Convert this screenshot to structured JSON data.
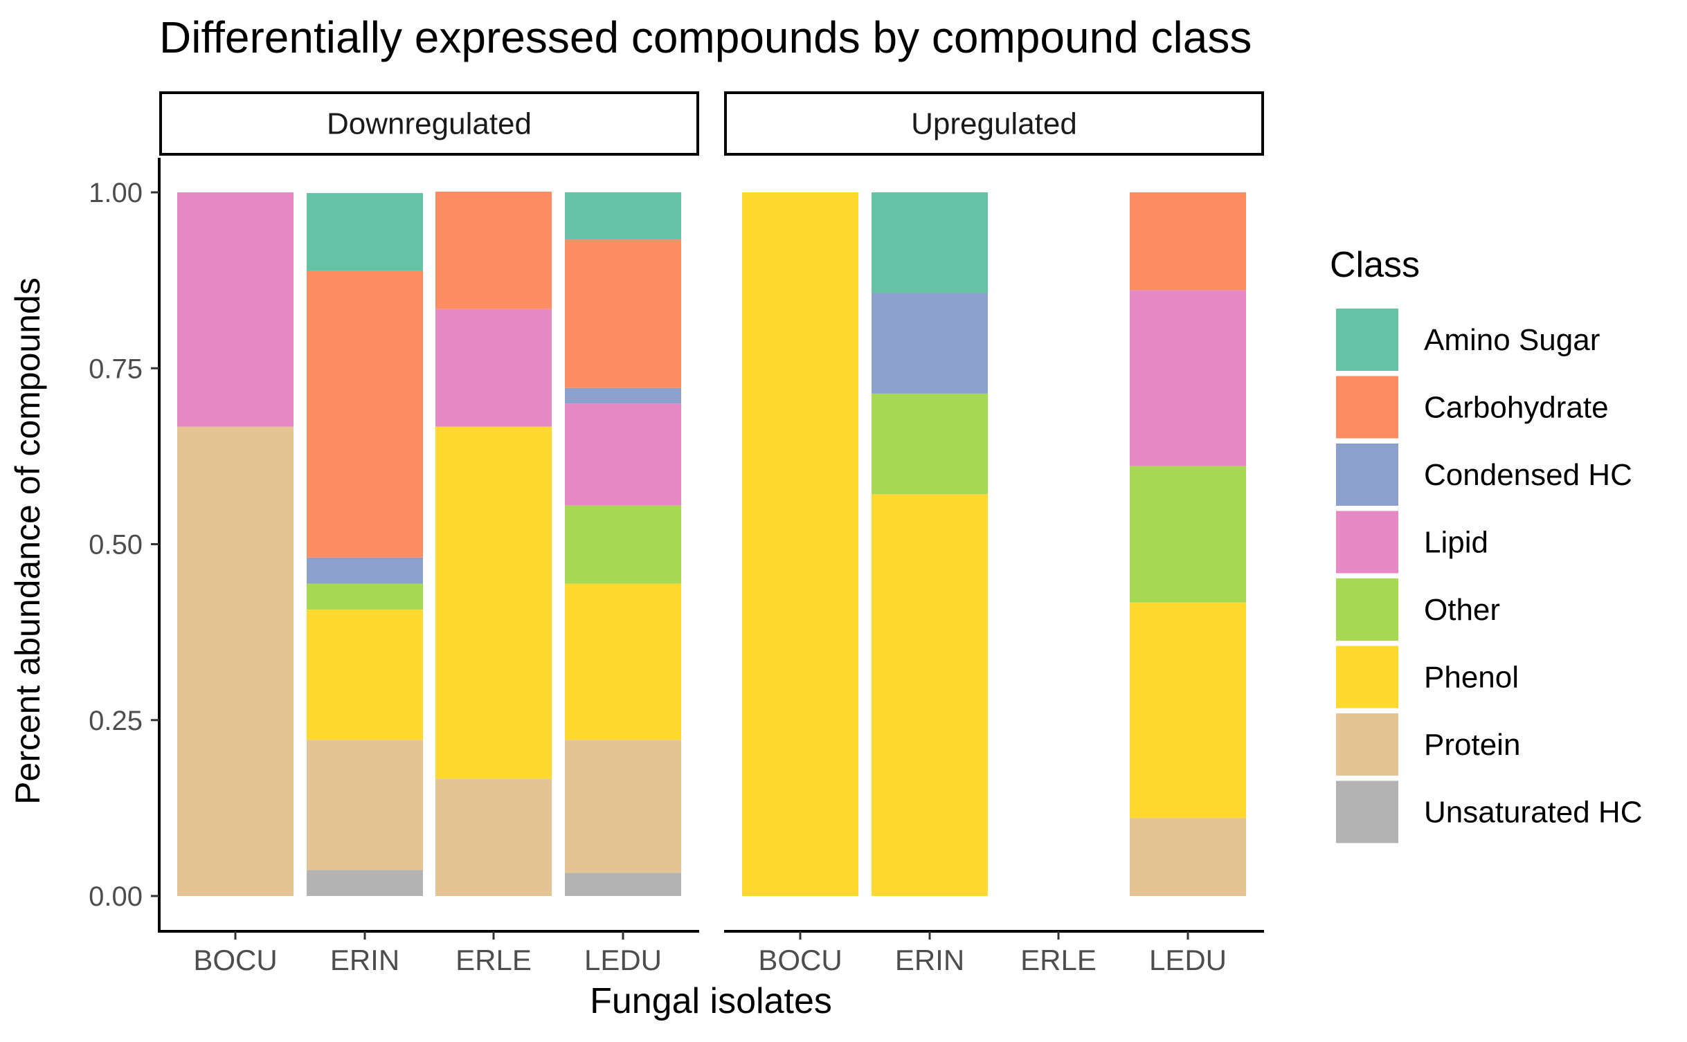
{
  "chart_data": {
    "type": "bar",
    "stacked": true,
    "title": "Differentially expressed compounds by compound class",
    "xlabel": "Fungal isolates",
    "ylabel": "Percent abundance of compounds",
    "ylim": [
      0,
      1
    ],
    "yticks": [
      "0.00",
      "0.25",
      "0.50",
      "0.75",
      "1.00"
    ],
    "ytick_values": [
      0,
      0.25,
      0.5,
      0.75,
      1
    ],
    "categories": [
      "BOCU",
      "ERIN",
      "ERLE",
      "LEDU"
    ],
    "grid": false,
    "legend": {
      "title": "Class",
      "position": "right",
      "entries": [
        "Amino Sugar",
        "Carbohydrate",
        "Condensed HC",
        "Lipid",
        "Other",
        "Phenol",
        "Protein",
        "Unsaturated HC"
      ]
    },
    "colors": {
      "Amino Sugar": "#66C2A5",
      "Carbohydrate": "#FC8D62",
      "Condensed HC": "#8DA0CB",
      "Lipid": "#E78AC3",
      "Other": "#A6D854",
      "Phenol": "#FFD92F",
      "Protein": "#E5C494",
      "Unsaturated HC": "#B3B3B3"
    },
    "stack_order": [
      "Unsaturated HC",
      "Protein",
      "Phenol",
      "Other",
      "Lipid",
      "Condensed HC",
      "Carbohydrate",
      "Amino Sugar"
    ],
    "panels": [
      {
        "label": "Downregulated",
        "bars": {
          "BOCU": {
            "Protein": 0.667,
            "Lipid": 0.333
          },
          "ERIN": {
            "Unsaturated HC": 0.037,
            "Protein": 0.185,
            "Phenol": 0.185,
            "Other": 0.037,
            "Condensed HC": 0.037,
            "Carbohydrate": 0.407,
            "Amino Sugar": 0.111
          },
          "ERLE": {
            "Protein": 0.167,
            "Phenol": 0.5,
            "Lipid": 0.167,
            "Carbohydrate": 0.167
          },
          "LEDU": {
            "Unsaturated HC": 0.033,
            "Protein": 0.189,
            "Phenol": 0.222,
            "Other": 0.111,
            "Lipid": 0.145,
            "Condensed HC": 0.022,
            "Carbohydrate": 0.211,
            "Amino Sugar": 0.067
          }
        }
      },
      {
        "label": "Upregulated",
        "bars": {
          "BOCU": {
            "Phenol": 1.0
          },
          "ERIN": {
            "Phenol": 0.571,
            "Other": 0.143,
            "Condensed HC": 0.143,
            "Amino Sugar": 0.143
          },
          "ERLE": {},
          "LEDU": {
            "Protein": 0.111,
            "Phenol": 0.306,
            "Other": 0.194,
            "Lipid": 0.25,
            "Carbohydrate": 0.139
          }
        }
      }
    ]
  }
}
